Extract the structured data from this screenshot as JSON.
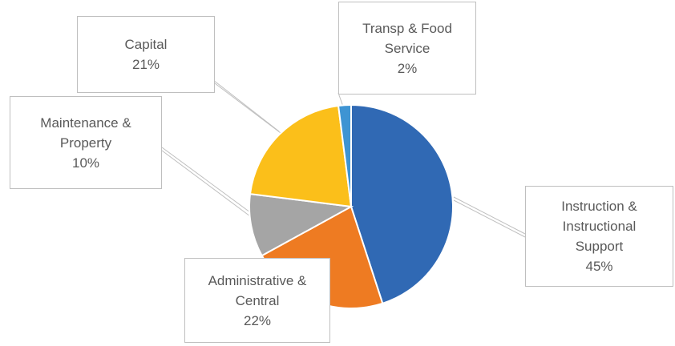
{
  "chart_data": {
    "type": "pie",
    "categories": [
      "Instruction & Instructional Support",
      "Administrative & Central",
      "Maintenance & Property",
      "Capital",
      "Transp & Food Service"
    ],
    "values": [
      45,
      22,
      10,
      21,
      2
    ],
    "value_labels": [
      "45%",
      "22%",
      "10%",
      "21%",
      "2%"
    ],
    "colors": [
      "#3069b4",
      "#ee7b22",
      "#a5a5a5",
      "#fbbf1a",
      "#3e94d3"
    ]
  }
}
